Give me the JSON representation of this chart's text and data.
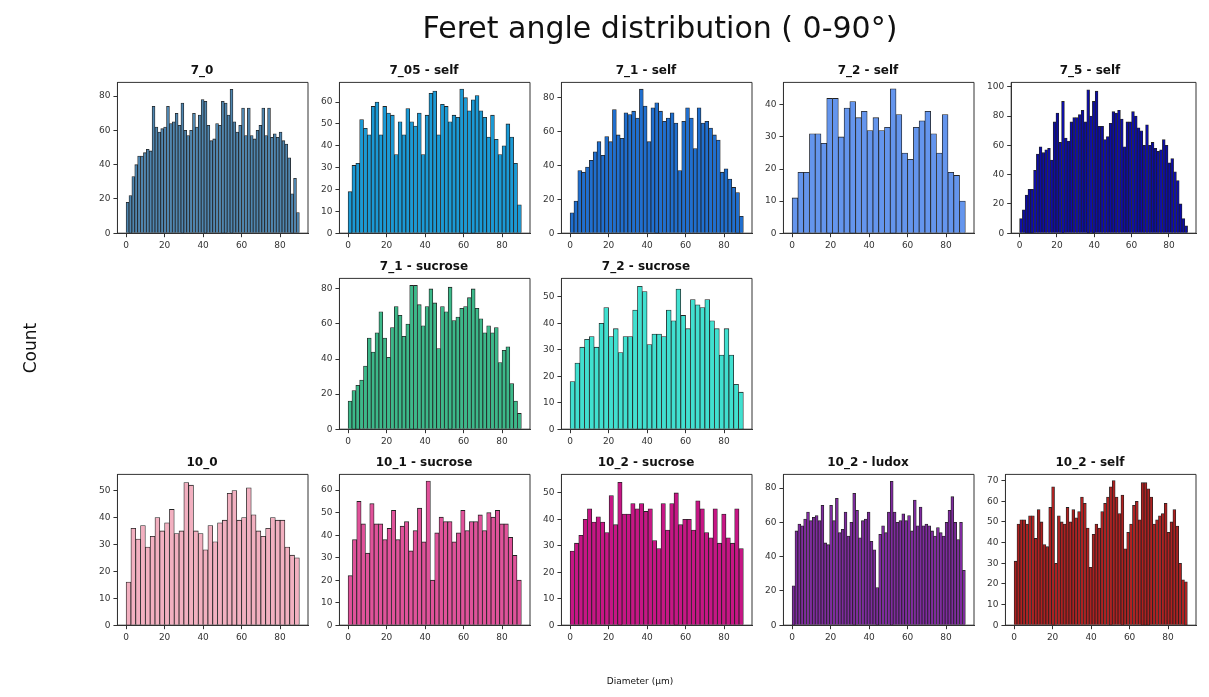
{
  "chart_data": [
    {
      "type": "other",
      "title": "Feret angle distribution ( 0-90°)",
      "xlabel": "Diameter (µm)",
      "ylabel": "Count"
    },
    {
      "type": "histogram",
      "title": "7_0",
      "color": "#4f86b0",
      "xlim": [
        -4.5,
        94.5
      ],
      "xticks": [
        0,
        20,
        40,
        60,
        80
      ],
      "ylim": [
        0,
        88
      ],
      "yticks": [
        0,
        20,
        40,
        60,
        80
      ],
      "bins": [
        0,
        1.5,
        3,
        4.5,
        6,
        7.5,
        9,
        10.5,
        12,
        13.5,
        15,
        16.5,
        18,
        19.5,
        21,
        22.5,
        24,
        25.5,
        27,
        28.5,
        30,
        31.5,
        33,
        34.5,
        36,
        37.5,
        39,
        40.5,
        42,
        43.5,
        45,
        46.5,
        48,
        49.5,
        51,
        52.5,
        54,
        55.5,
        57,
        58.5,
        60,
        61.5,
        63,
        64.5,
        66,
        67.5,
        69,
        70.5,
        72,
        73.5,
        75,
        76.5,
        78,
        79.5,
        81,
        82.5,
        84,
        85.5,
        87,
        88.5,
        90
      ],
      "values": [
        18,
        22,
        33,
        40,
        45,
        45,
        47,
        49,
        48,
        74,
        62,
        59,
        61,
        62,
        74,
        64,
        65,
        70,
        63,
        76,
        60,
        57,
        60,
        70,
        62,
        69,
        78,
        77,
        63,
        54,
        55,
        64,
        63,
        77,
        76,
        69,
        84,
        65,
        59,
        63,
        73,
        57,
        73,
        57,
        55,
        60,
        63,
        73,
        57,
        73,
        56,
        58,
        56,
        59,
        54,
        52,
        44,
        23,
        32,
        12
      ]
    },
    {
      "type": "histogram",
      "title": "7_05 - self",
      "color": "#1a9ad6",
      "xlim": [
        -4.5,
        94.5
      ],
      "xticks": [
        0,
        20,
        40,
        60,
        80
      ],
      "ylim": [
        0,
        69
      ],
      "yticks": [
        0,
        10,
        20,
        30,
        40,
        50,
        60
      ],
      "bins": [
        0,
        2,
        4,
        6,
        8,
        10,
        12,
        14,
        16,
        18,
        20,
        22,
        24,
        26,
        28,
        30,
        32,
        34,
        36,
        38,
        40,
        42,
        44,
        46,
        48,
        50,
        52,
        54,
        56,
        58,
        60,
        62,
        64,
        66,
        68,
        70,
        72,
        74,
        76,
        78,
        80,
        82,
        84,
        86,
        88,
        90
      ],
      "values": [
        19,
        31,
        32,
        52,
        48,
        45,
        58,
        60,
        45,
        58,
        55,
        54,
        36,
        51,
        45,
        57,
        51,
        49,
        55,
        36,
        54,
        64,
        65,
        45,
        59,
        58,
        51,
        54,
        53,
        66,
        62,
        56,
        61,
        63,
        56,
        53,
        44,
        54,
        43,
        36,
        40,
        50,
        44,
        32,
        13
      ]
    },
    {
      "type": "histogram",
      "title": "7_1 - self",
      "color": "#1f6fd0",
      "xlim": [
        -4.5,
        94.5
      ],
      "xticks": [
        0,
        20,
        40,
        60,
        80
      ],
      "ylim": [
        0,
        89
      ],
      "yticks": [
        0,
        20,
        40,
        60,
        80
      ],
      "bins": [
        0,
        2,
        4,
        6,
        8,
        10,
        12,
        14,
        16,
        18,
        20,
        22,
        24,
        26,
        28,
        30,
        32,
        34,
        36,
        38,
        40,
        42,
        44,
        46,
        48,
        50,
        52,
        54,
        56,
        58,
        60,
        62,
        64,
        66,
        68,
        70,
        72,
        74,
        76,
        78,
        80,
        82,
        84,
        86,
        88,
        90
      ],
      "values": [
        12,
        19,
        37,
        36,
        39,
        43,
        48,
        54,
        46,
        57,
        54,
        73,
        58,
        56,
        71,
        70,
        72,
        68,
        85,
        75,
        54,
        74,
        77,
        72,
        66,
        68,
        71,
        65,
        37,
        66,
        74,
        68,
        50,
        74,
        65,
        66,
        62,
        58,
        55,
        36,
        38,
        32,
        27,
        24,
        10
      ]
    },
    {
      "type": "histogram",
      "title": "7_2 - self",
      "color": "#6495ed",
      "xlim": [
        -4.5,
        94.5
      ],
      "xticks": [
        0,
        20,
        40,
        60,
        80
      ],
      "ylim": [
        0,
        47
      ],
      "yticks": [
        0,
        10,
        20,
        30,
        40
      ],
      "bins": [
        0,
        3,
        6,
        9,
        12,
        15,
        18,
        21,
        24,
        27,
        30,
        33,
        36,
        39,
        42,
        45,
        48,
        51,
        54,
        57,
        60,
        63,
        66,
        69,
        72,
        75,
        78,
        81,
        84,
        87,
        90
      ],
      "values": [
        11,
        19,
        19,
        31,
        31,
        28,
        42,
        42,
        30,
        39,
        41,
        36,
        38,
        32,
        36,
        32,
        33,
        45,
        37,
        25,
        23,
        33,
        35,
        38,
        31,
        25,
        37,
        19,
        18,
        10
      ]
    },
    {
      "type": "histogram",
      "title": "7_5 - self",
      "color": "#0a0aa8",
      "xlim": [
        -4.5,
        94.5
      ],
      "xticks": [
        0,
        20,
        40,
        60,
        80
      ],
      "ylim": [
        0,
        103
      ],
      "yticks": [
        0,
        20,
        40,
        60,
        80,
        100
      ],
      "bins": [
        0,
        1.5,
        3,
        4.5,
        6,
        7.5,
        9,
        10.5,
        12,
        13.5,
        15,
        16.5,
        18,
        19.5,
        21,
        22.5,
        24,
        25.5,
        27,
        28.5,
        30,
        31.5,
        33,
        34.5,
        36,
        37.5,
        39,
        40.5,
        42,
        43.5,
        45,
        46.5,
        48,
        49.5,
        51,
        52.5,
        54,
        55.5,
        57,
        58.5,
        60,
        61.5,
        63,
        64.5,
        66,
        67.5,
        69,
        70.5,
        72,
        73.5,
        75,
        76.5,
        78,
        79.5,
        81,
        82.5,
        84,
        85.5,
        87,
        88.5,
        90
      ],
      "values": [
        10,
        16,
        26,
        30,
        30,
        43,
        54,
        59,
        55,
        57,
        58,
        50,
        76,
        82,
        62,
        90,
        65,
        63,
        76,
        79,
        79,
        81,
        84,
        76,
        98,
        80,
        90,
        97,
        73,
        73,
        64,
        66,
        75,
        83,
        82,
        84,
        78,
        59,
        76,
        76,
        83,
        80,
        72,
        70,
        60,
        74,
        60,
        62,
        58,
        56,
        57,
        64,
        60,
        48,
        51,
        42,
        36,
        20,
        10,
        5
      ]
    },
    {
      "type": "histogram",
      "title": "7_1 - sucrose",
      "color": "#3cb98a",
      "xlim": [
        -4.5,
        94.5
      ],
      "xticks": [
        0,
        20,
        40,
        60,
        80
      ],
      "ylim": [
        0,
        86
      ],
      "yticks": [
        0,
        20,
        40,
        60,
        80
      ],
      "bins": [
        0,
        2,
        4,
        6,
        8,
        10,
        12,
        14,
        16,
        18,
        20,
        22,
        24,
        26,
        28,
        30,
        32,
        34,
        36,
        38,
        40,
        42,
        44,
        46,
        48,
        50,
        52,
        54,
        56,
        58,
        60,
        62,
        64,
        66,
        68,
        70,
        72,
        74,
        76,
        78,
        80,
        82,
        84,
        86,
        88,
        90
      ],
      "values": [
        16,
        22,
        25,
        28,
        36,
        52,
        44,
        55,
        67,
        52,
        41,
        58,
        70,
        65,
        53,
        60,
        82,
        82,
        71,
        59,
        70,
        80,
        72,
        46,
        70,
        67,
        81,
        62,
        64,
        69,
        70,
        75,
        80,
        69,
        63,
        55,
        59,
        55,
        58,
        38,
        45,
        47,
        26,
        16,
        9
      ]
    },
    {
      "type": "histogram",
      "title": "7_2 - sucrose",
      "color": "#40e0d0",
      "xlim": [
        -4.5,
        94.5
      ],
      "xticks": [
        0,
        20,
        40,
        60,
        80
      ],
      "ylim": [
        0,
        57
      ],
      "yticks": [
        0,
        10,
        20,
        30,
        40,
        50
      ],
      "bins": [
        0,
        2.5,
        5,
        7.5,
        10,
        12.5,
        15,
        17.5,
        20,
        22.5,
        25,
        27.5,
        30,
        32.5,
        35,
        37.5,
        40,
        42.5,
        45,
        47.5,
        50,
        52.5,
        55,
        57.5,
        60,
        62.5,
        65,
        67.5,
        70,
        72.5,
        75,
        77.5,
        80,
        82.5,
        85,
        87.5,
        90
      ],
      "values": [
        18,
        25,
        31,
        34,
        35,
        31,
        40,
        46,
        35,
        38,
        29,
        35,
        35,
        45,
        54,
        52,
        32,
        36,
        36,
        35,
        45,
        41,
        53,
        43,
        38,
        49,
        47,
        46,
        49,
        41,
        38,
        28,
        38,
        28,
        17,
        14
      ]
    },
    {
      "type": "histogram",
      "title": "10_0",
      "color": "#f2b0c0",
      "xlim": [
        -4.5,
        94.5
      ],
      "xticks": [
        0,
        20,
        40,
        60,
        80
      ],
      "ylim": [
        0,
        56
      ],
      "yticks": [
        0,
        10,
        20,
        30,
        40,
        50
      ],
      "bins": [
        0,
        2.5,
        5,
        7.5,
        10,
        12.5,
        15,
        17.5,
        20,
        22.5,
        25,
        27.5,
        30,
        32.5,
        35,
        37.5,
        40,
        42.5,
        45,
        47.5,
        50,
        52.5,
        55,
        57.5,
        60,
        62.5,
        65,
        67.5,
        70,
        72.5,
        75,
        77.5,
        80,
        82.5,
        85,
        87.5,
        90
      ],
      "values": [
        16,
        36,
        32,
        37,
        29,
        33,
        40,
        35,
        38,
        43,
        34,
        35,
        53,
        52,
        35,
        34,
        28,
        37,
        31,
        38,
        39,
        49,
        50,
        39,
        40,
        51,
        41,
        35,
        33,
        36,
        40,
        39,
        39,
        29,
        26,
        25
      ]
    },
    {
      "type": "histogram",
      "title": "10_1 - sucrose",
      "color": "#e0529a",
      "xlim": [
        -4.5,
        94.5
      ],
      "xticks": [
        0,
        20,
        40,
        60,
        80
      ],
      "ylim": [
        0,
        67
      ],
      "yticks": [
        0,
        10,
        20,
        30,
        40,
        50,
        60
      ],
      "bins": [
        0,
        2.25,
        4.5,
        6.75,
        9,
        11.25,
        13.5,
        15.75,
        18,
        20.25,
        22.5,
        24.75,
        27,
        29.25,
        31.5,
        33.75,
        36,
        38.25,
        40.5,
        42.75,
        45,
        47.25,
        49.5,
        51.75,
        54,
        56.25,
        58.5,
        60.75,
        63,
        65.25,
        67.5,
        69.75,
        72,
        74.25,
        76.5,
        78.75,
        81,
        83.25,
        85.5,
        87.75,
        90
      ],
      "values": [
        22,
        38,
        55,
        45,
        32,
        54,
        45,
        45,
        38,
        43,
        51,
        38,
        44,
        46,
        33,
        42,
        52,
        37,
        64,
        20,
        41,
        48,
        46,
        46,
        37,
        41,
        51,
        42,
        46,
        46,
        49,
        42,
        50,
        48,
        51,
        45,
        45,
        39,
        31,
        20
      ]
    },
    {
      "type": "histogram",
      "title": "10_2 - sucrose",
      "color": "#c71585",
      "xlim": [
        -4.5,
        94.5
      ],
      "xticks": [
        0,
        20,
        40,
        60,
        80
      ],
      "ylim": [
        0,
        57
      ],
      "yticks": [
        0,
        10,
        20,
        30,
        40,
        50
      ],
      "bins": [
        0,
        2.25,
        4.5,
        6.75,
        9,
        11.25,
        13.5,
        15.75,
        18,
        20.25,
        22.5,
        24.75,
        27,
        29.25,
        31.5,
        33.75,
        36,
        38.25,
        40.5,
        42.75,
        45,
        47.25,
        49.5,
        51.75,
        54,
        56.25,
        58.5,
        60.75,
        63,
        65.25,
        67.5,
        69.75,
        72,
        74.25,
        76.5,
        78.75,
        81,
        83.25,
        85.5,
        87.75,
        90
      ],
      "values": [
        28,
        31,
        34,
        40,
        44,
        39,
        41,
        39,
        35,
        49,
        38,
        54,
        42,
        42,
        46,
        44,
        46,
        43,
        44,
        32,
        29,
        46,
        36,
        46,
        50,
        38,
        40,
        40,
        36,
        47,
        44,
        35,
        33,
        44,
        31,
        42,
        33,
        31,
        44,
        29
      ]
    },
    {
      "type": "histogram",
      "title": "10_2 - ludox",
      "color": "#7f2aa0",
      "xlim": [
        -4.5,
        94.5
      ],
      "xticks": [
        0,
        20,
        40,
        60,
        80
      ],
      "ylim": [
        0,
        88
      ],
      "yticks": [
        0,
        20,
        40,
        60,
        80
      ],
      "bins": [
        0,
        1.5,
        3,
        4.5,
        6,
        7.5,
        9,
        10.5,
        12,
        13.5,
        15,
        16.5,
        18,
        19.5,
        21,
        22.5,
        24,
        25.5,
        27,
        28.5,
        30,
        31.5,
        33,
        34.5,
        36,
        37.5,
        39,
        40.5,
        42,
        43.5,
        45,
        46.5,
        48,
        49.5,
        51,
        52.5,
        54,
        55.5,
        57,
        58.5,
        60,
        61.5,
        63,
        64.5,
        66,
        67.5,
        69,
        70.5,
        72,
        73.5,
        75,
        76.5,
        78,
        79.5,
        81,
        82.5,
        84,
        85.5,
        87,
        88.5,
        90
      ],
      "values": [
        23,
        55,
        59,
        58,
        62,
        66,
        61,
        63,
        64,
        61,
        70,
        48,
        47,
        70,
        61,
        74,
        54,
        56,
        66,
        52,
        60,
        77,
        67,
        51,
        61,
        62,
        66,
        49,
        44,
        22,
        53,
        58,
        54,
        66,
        84,
        66,
        60,
        61,
        65,
        61,
        64,
        55,
        73,
        58,
        69,
        58,
        59,
        58,
        55,
        52,
        57,
        54,
        52,
        60,
        67,
        75,
        60,
        50,
        60,
        32
      ]
    },
    {
      "type": "histogram",
      "title": "10_2 - self",
      "color": "#b02020",
      "xlim": [
        -4.5,
        94.5
      ],
      "xticks": [
        0,
        20,
        40,
        60,
        80
      ],
      "ylim": [
        0,
        73
      ],
      "yticks": [
        0,
        10,
        20,
        30,
        40,
        50,
        60,
        70
      ],
      "bins": [
        0,
        1.5,
        3,
        4.5,
        6,
        7.5,
        9,
        10.5,
        12,
        13.5,
        15,
        16.5,
        18,
        19.5,
        21,
        22.5,
        24,
        25.5,
        27,
        28.5,
        30,
        31.5,
        33,
        34.5,
        36,
        37.5,
        39,
        40.5,
        42,
        43.5,
        45,
        46.5,
        48,
        49.5,
        51,
        52.5,
        54,
        55.5,
        57,
        58.5,
        60,
        61.5,
        63,
        64.5,
        66,
        67.5,
        69,
        70.5,
        72,
        73.5,
        75,
        76.5,
        78,
        79.5,
        81,
        82.5,
        84,
        85.5,
        87,
        88.5,
        90
      ],
      "values": [
        31,
        49,
        51,
        51,
        49,
        53,
        53,
        42,
        56,
        50,
        39,
        38,
        57,
        67,
        30,
        53,
        50,
        49,
        57,
        50,
        56,
        52,
        55,
        62,
        59,
        47,
        28,
        44,
        49,
        47,
        55,
        59,
        62,
        67,
        70,
        62,
        54,
        63,
        37,
        45,
        49,
        58,
        60,
        51,
        69,
        69,
        66,
        62,
        49,
        51,
        53,
        54,
        59,
        45,
        50,
        56,
        48,
        30,
        22,
        21
      ]
    }
  ]
}
